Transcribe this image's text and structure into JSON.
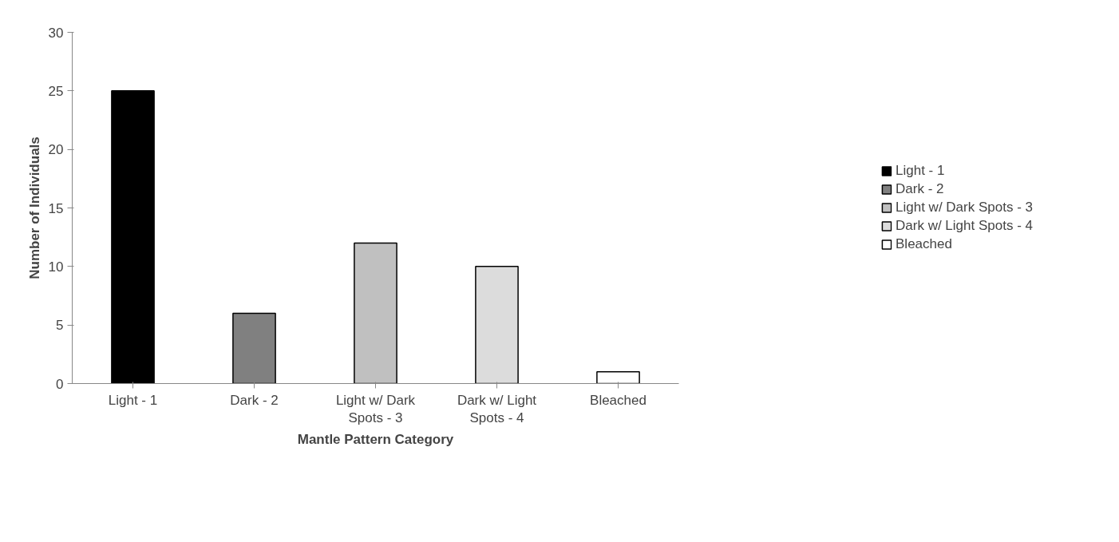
{
  "chart_data": {
    "type": "bar",
    "xlabel": "Mantle Pattern Category",
    "ylabel": "Number of Individuals",
    "categories": [
      "Light - 1",
      "Dark - 2",
      "Light w/ Dark Spots - 3",
      "Dark w/ Light Spots - 4",
      "Bleached"
    ],
    "series": [
      {
        "name": "Light - 1",
        "color": "#000000",
        "values": [
          25,
          null,
          null,
          null,
          null
        ]
      },
      {
        "name": "Dark - 2",
        "color": "#808080",
        "values": [
          null,
          6,
          null,
          null,
          null
        ]
      },
      {
        "name": "Light w/ Dark Spots - 3",
        "color": "#c0c0c0",
        "values": [
          null,
          null,
          12,
          null,
          null
        ]
      },
      {
        "name": "Dark w/ Light Spots - 4",
        "color": "#dcdcdc",
        "values": [
          null,
          null,
          null,
          10,
          null
        ]
      },
      {
        "name": "Bleached",
        "color": "#ffffff",
        "values": [
          null,
          null,
          null,
          null,
          1
        ]
      }
    ],
    "ylim": [
      0,
      30
    ],
    "yticks": [
      0,
      5,
      10,
      15,
      20,
      25,
      30
    ],
    "grid": false,
    "legend": "right"
  }
}
